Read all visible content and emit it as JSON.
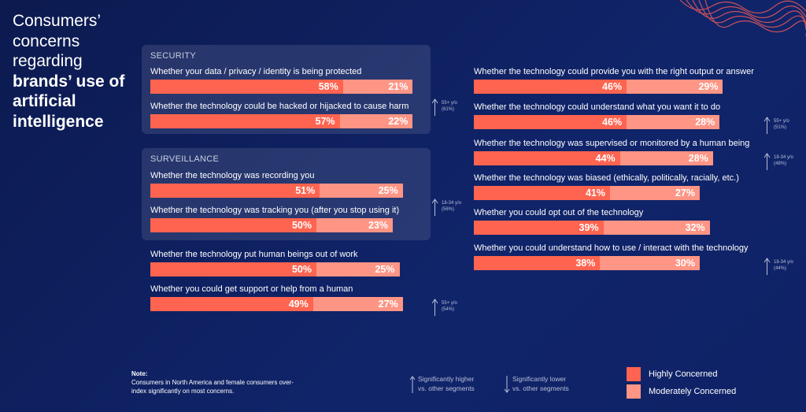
{
  "title_line1": "Consumers’ concerns regarding",
  "title_line2": "brands’ use of artificial intelligence",
  "colors": {
    "highly": "#fe6450",
    "moderately": "#fe9585",
    "background": "#0f2060"
  },
  "chart_data": {
    "type": "bar",
    "stacked": true,
    "orientation": "horizontal",
    "legend": [
      "Highly Concerned",
      "Moderately Concerned"
    ],
    "legend_placement": "bottom-right",
    "groups": [
      {
        "title": "SECURITY",
        "items": [
          {
            "label": "Whether your data / privacy / identity is being protected",
            "highly": 58,
            "moderately": 21
          },
          {
            "label": "Whether the technology could be hacked or hijacked to cause harm",
            "highly": 57,
            "moderately": 22
          }
        ],
        "annotation": {
          "segment": "55+ y/o",
          "value": "(61%)",
          "direction": "up"
        }
      },
      {
        "title": "SURVEILLANCE",
        "items": [
          {
            "label": "Whether the technology was recording you",
            "highly": 51,
            "moderately": 25
          },
          {
            "label": "Whether the technology was tracking you (after you stop using it)",
            "highly": 50,
            "moderately": 23
          }
        ],
        "annotation": {
          "segment": "18-34 y/o",
          "value": "(56%)",
          "direction": "up"
        }
      },
      {
        "title": "",
        "items": [
          {
            "label": "Whether the technology put human beings out of work",
            "highly": 50,
            "moderately": 25
          },
          {
            "label": "Whether you could get support or help from a human",
            "highly": 49,
            "moderately": 27,
            "annotation": {
              "segment": "55+ y/o",
              "value": "(54%)",
              "direction": "up"
            }
          }
        ]
      },
      {
        "title": "",
        "column": "right",
        "items": [
          {
            "label": "Whether the technology could provide you with the right output or answer",
            "highly": 46,
            "moderately": 29
          },
          {
            "label": "Whether the technology could understand what you want it to do",
            "highly": 46,
            "moderately": 28,
            "annotation": {
              "segment": "55+ y/o",
              "value": "(51%)",
              "direction": "up"
            }
          },
          {
            "label": "Whether the technology was supervised or monitored by a human being",
            "highly": 44,
            "moderately": 28,
            "annotation": {
              "segment": "18-34 y/o",
              "value": "(48%)",
              "direction": "up"
            }
          },
          {
            "label": "Whether the technology was biased (ethically, politically, racially, etc.)",
            "highly": 41,
            "moderately": 27
          },
          {
            "label": "Whether you could opt out of the technology",
            "highly": 39,
            "moderately": 32
          },
          {
            "label": "Whether you could understand how to use / interact with the technology",
            "highly": 38,
            "moderately": 30,
            "annotation": {
              "segment": "18-34 y/o",
              "value": "(44%)",
              "direction": "up"
            }
          }
        ]
      }
    ]
  },
  "note": {
    "heading": "Note:",
    "text": "Consumers in North America and female consumers over-index significantly on most concerns."
  },
  "legend_arrows": {
    "up": "Significantly higher vs. other segments",
    "down": "Significantly lower vs. other segments"
  },
  "legend": {
    "highly": "Highly Concerned",
    "moderately": "Moderately Concerned"
  }
}
